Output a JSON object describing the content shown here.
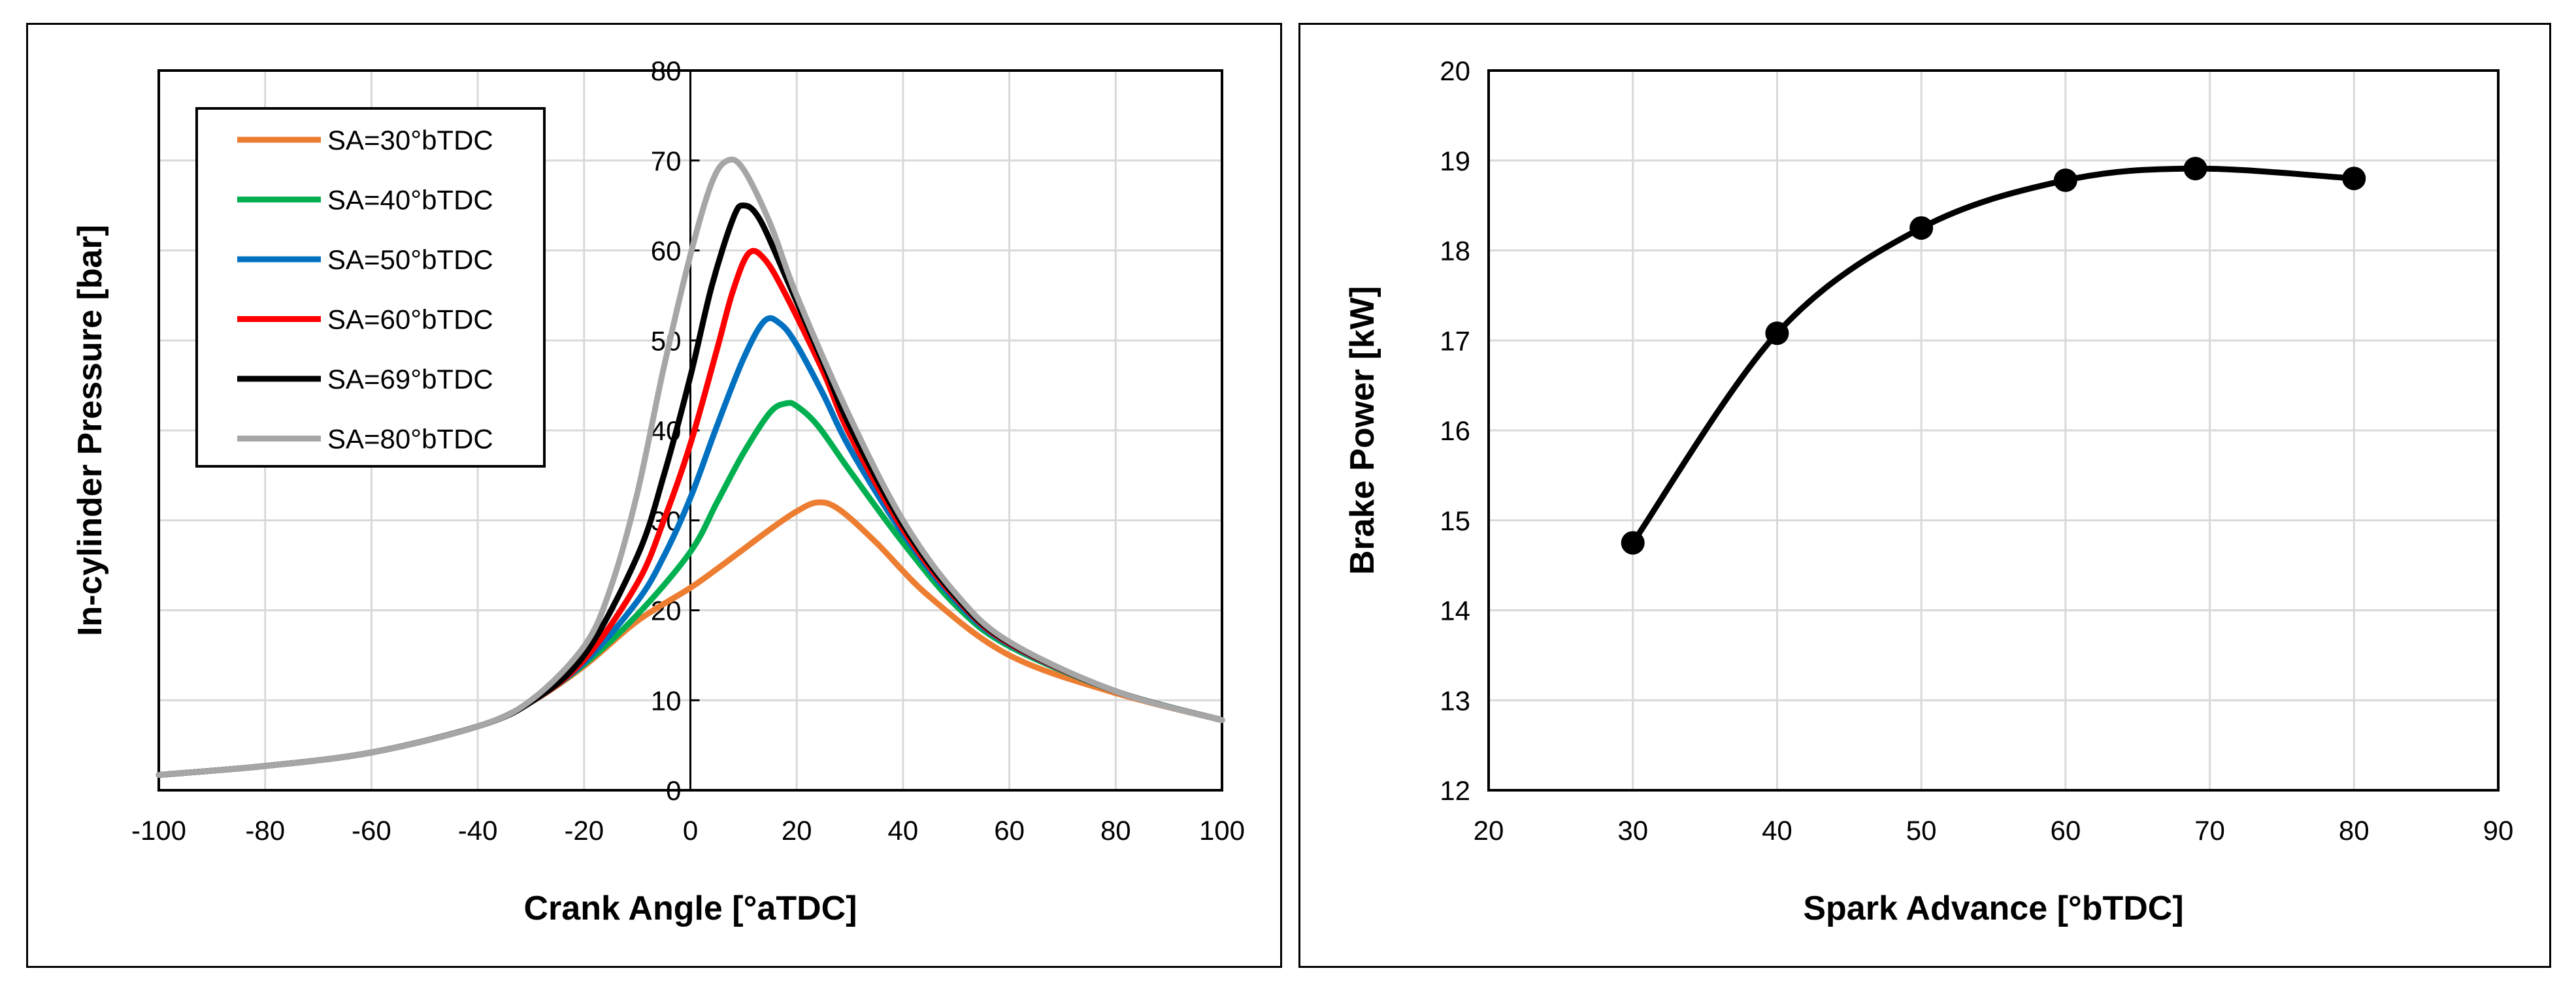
{
  "chart_data": [
    {
      "type": "line",
      "title": "",
      "xlabel": "Crank Angle [°aTDC]",
      "ylabel": "In-cylinder Pressure [bar]",
      "xlim": [
        -100,
        100
      ],
      "ylim": [
        0,
        80
      ],
      "xticks": [
        -100,
        -80,
        -60,
        -40,
        -20,
        0,
        20,
        40,
        60,
        80,
        100
      ],
      "yticks": [
        0,
        10,
        20,
        30,
        40,
        50,
        60,
        70,
        80
      ],
      "grid": true,
      "legend_position": "top-left",
      "series": [
        {
          "name": "SA=30°bTDC",
          "color": "#ED7D31",
          "x": [
            -100,
            -80,
            -60,
            -40,
            -30,
            -20,
            -10,
            0,
            5,
            10,
            15,
            20,
            24,
            28,
            35,
            45,
            60,
            80,
            100
          ],
          "y": [
            1.7,
            2.7,
            4.2,
            7.1,
            9.8,
            13.8,
            18.8,
            22.5,
            24.6,
            26.8,
            29.0,
            31.0,
            32.0,
            31.2,
            27.5,
            21.5,
            15.0,
            10.8,
            7.8
          ]
        },
        {
          "name": "SA=40°bTDC",
          "color": "#00B050",
          "x": [
            -100,
            -80,
            -60,
            -40,
            -30,
            -20,
            -10,
            0,
            5,
            10,
            15,
            18,
            20,
            24,
            30,
            40,
            50,
            60,
            80,
            100
          ],
          "y": [
            1.7,
            2.7,
            4.2,
            7.1,
            9.8,
            14.0,
            19.5,
            26.5,
            32.0,
            37.5,
            42.0,
            43.0,
            42.7,
            40.5,
            35.5,
            27.5,
            20.5,
            16.0,
            11.0,
            7.8
          ]
        },
        {
          "name": "SA=50°bTDC",
          "color": "#0070C0",
          "x": [
            -100,
            -80,
            -60,
            -40,
            -30,
            -20,
            -10,
            -5,
            0,
            5,
            10,
            14,
            17,
            20,
            25,
            30,
            40,
            50,
            60,
            80,
            100
          ],
          "y": [
            1.7,
            2.7,
            4.2,
            7.1,
            9.8,
            14.2,
            21.0,
            26.0,
            32.5,
            40.5,
            48.0,
            52.2,
            51.8,
            49.5,
            44.0,
            38.0,
            28.5,
            21.0,
            16.2,
            11.0,
            7.8
          ]
        },
        {
          "name": "SA=60°bTDC",
          "color": "#FF0000",
          "x": [
            -100,
            -80,
            -60,
            -40,
            -30,
            -20,
            -10,
            -5,
            0,
            5,
            8,
            11,
            14,
            18,
            25,
            30,
            40,
            50,
            60,
            80,
            100
          ],
          "y": [
            1.7,
            2.7,
            4.2,
            7.1,
            9.8,
            14.5,
            23.0,
            30.0,
            38.5,
            49.0,
            55.5,
            59.7,
            59.0,
            55.0,
            46.5,
            39.5,
            29.0,
            21.3,
            16.3,
            11.0,
            7.8
          ]
        },
        {
          "name": "SA=69°bTDC",
          "color": "#000000",
          "x": [
            -100,
            -80,
            -60,
            -40,
            -30,
            -20,
            -10,
            -5,
            0,
            4,
            8,
            10,
            13,
            18,
            25,
            30,
            40,
            50,
            60,
            80,
            100
          ],
          "y": [
            1.7,
            2.7,
            4.2,
            7.1,
            9.8,
            15.0,
            26.0,
            35.0,
            46.0,
            56.0,
            63.5,
            65.0,
            63.5,
            57.0,
            47.5,
            40.5,
            29.5,
            21.5,
            16.4,
            11.0,
            7.8
          ]
        },
        {
          "name": "SA=80°bTDC",
          "color": "#A6A6A6",
          "x": [
            -100,
            -80,
            -60,
            -40,
            -30,
            -20,
            -15,
            -10,
            -5,
            0,
            4,
            7,
            10,
            15,
            20,
            30,
            40,
            50,
            60,
            80,
            100
          ],
          "y": [
            1.7,
            2.7,
            4.2,
            7.1,
            10.0,
            16.0,
            22.5,
            33.0,
            47.0,
            59.5,
            67.5,
            70.0,
            69.0,
            63.0,
            55.0,
            41.5,
            30.0,
            21.8,
            16.5,
            11.0,
            7.8
          ]
        }
      ]
    },
    {
      "type": "line",
      "title": "",
      "xlabel": "Spark Advance [°bTDC]",
      "ylabel": "Brake Power [kW]",
      "xlim": [
        20,
        90
      ],
      "ylim": [
        12,
        20
      ],
      "xticks": [
        20,
        30,
        40,
        50,
        60,
        70,
        80,
        90
      ],
      "yticks": [
        12,
        13,
        14,
        15,
        16,
        17,
        18,
        19,
        20
      ],
      "grid": true,
      "series": [
        {
          "name": "Brake Power",
          "color": "#000000",
          "markers": true,
          "x": [
            30,
            40,
            50,
            60,
            69,
            80
          ],
          "y": [
            14.75,
            17.08,
            18.25,
            18.78,
            18.91,
            18.8
          ]
        }
      ]
    }
  ]
}
